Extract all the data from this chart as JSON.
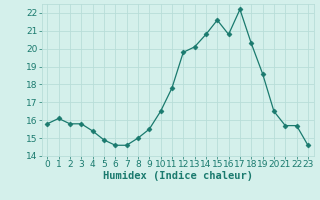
{
  "x": [
    0,
    1,
    2,
    3,
    4,
    5,
    6,
    7,
    8,
    9,
    10,
    11,
    12,
    13,
    14,
    15,
    16,
    17,
    18,
    19,
    20,
    21,
    22,
    23
  ],
  "y": [
    15.8,
    16.1,
    15.8,
    15.8,
    15.4,
    14.9,
    14.6,
    14.6,
    15.0,
    15.5,
    16.5,
    17.8,
    19.8,
    20.1,
    20.8,
    21.6,
    20.8,
    22.2,
    20.3,
    18.6,
    16.5,
    15.7,
    15.7,
    14.6
  ],
  "xlabel": "Humidex (Indice chaleur)",
  "ylim": [
    14,
    22.5
  ],
  "xlim": [
    -0.5,
    23.5
  ],
  "yticks": [
    14,
    15,
    16,
    17,
    18,
    19,
    20,
    21,
    22
  ],
  "xticks": [
    0,
    1,
    2,
    3,
    4,
    5,
    6,
    7,
    8,
    9,
    10,
    11,
    12,
    13,
    14,
    15,
    16,
    17,
    18,
    19,
    20,
    21,
    22,
    23
  ],
  "line_color": "#1a7a6e",
  "marker": "D",
  "marker_size": 2.5,
  "bg_color": "#d4f0eb",
  "grid_color": "#b8ddd8",
  "tick_label_fontsize": 6.5,
  "xlabel_fontsize": 7.5,
  "xlabel_fontweight": "bold"
}
